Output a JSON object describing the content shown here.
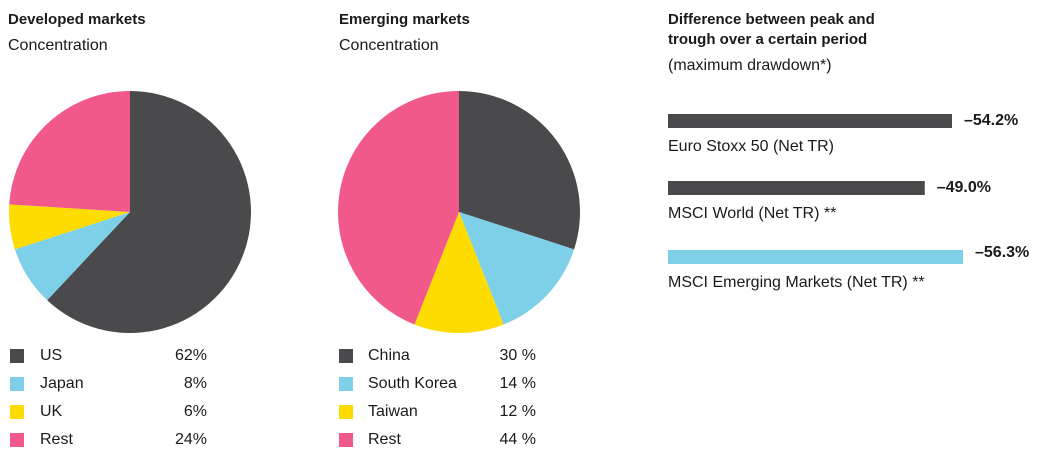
{
  "chart_data": [
    {
      "type": "pie",
      "title": "Developed markets",
      "subtitle": "Concentration",
      "categories": [
        "US",
        "Japan",
        "UK",
        "Rest"
      ],
      "values": [
        62,
        8,
        6,
        24
      ],
      "value_labels": [
        "62%",
        "8%",
        "6%",
        "24%"
      ],
      "colors": [
        "#4a4a4c",
        "#7dd0e8",
        "#ffdc00",
        "#f0598a"
      ]
    },
    {
      "type": "pie",
      "title": "Emerging markets",
      "subtitle": "Concentration",
      "categories": [
        "China",
        "South Korea",
        "Taiwan",
        "Rest"
      ],
      "values": [
        30,
        14,
        12,
        44
      ],
      "value_labels": [
        "30 %",
        "14 %",
        "12 %",
        "44 %"
      ],
      "colors": [
        "#4a4a4c",
        "#7dd0e8",
        "#ffdc00",
        "#f0598a"
      ]
    },
    {
      "type": "hbar",
      "title": "Difference between peak and trough over a certain period",
      "subtitle": "(maximum drawdown*)",
      "categories": [
        "Euro Stoxx 50 (Net TR)",
        "MSCI World (Net TR) **",
        "MSCI Emerging Markets (Net TR) **"
      ],
      "values": [
        -54.2,
        -49.0,
        -56.3
      ],
      "value_labels": [
        "–54.2%",
        "–49.0%",
        "–56.3%"
      ],
      "colors": [
        "#4a4a4c",
        "#4a4a4c",
        "#7dd0e8"
      ]
    }
  ]
}
